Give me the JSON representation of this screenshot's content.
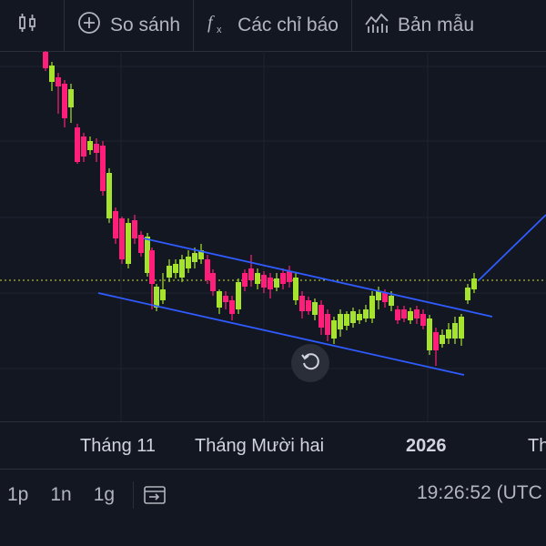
{
  "toolbar": {
    "compare_label": "So sánh",
    "indicators_label": "Các chỉ báo",
    "templates_label": "Bản mẫu",
    "icons": [
      "candlestick-icon",
      "plus-circle-icon",
      "fx-icon",
      "templates-icon"
    ]
  },
  "xaxis": {
    "labels": [
      "Tháng 11",
      "Tháng Mười hai",
      "2026",
      "Th"
    ]
  },
  "bottom": {
    "ranges": [
      "1p",
      "1n",
      "1g"
    ],
    "clock": "19:26:52 (UTC"
  },
  "colors": {
    "background": "#131722",
    "bull": "#a5e32e",
    "bear": "#ff1f7a",
    "trendline": "#2f5bff",
    "price_line": "#c8e030"
  }
}
